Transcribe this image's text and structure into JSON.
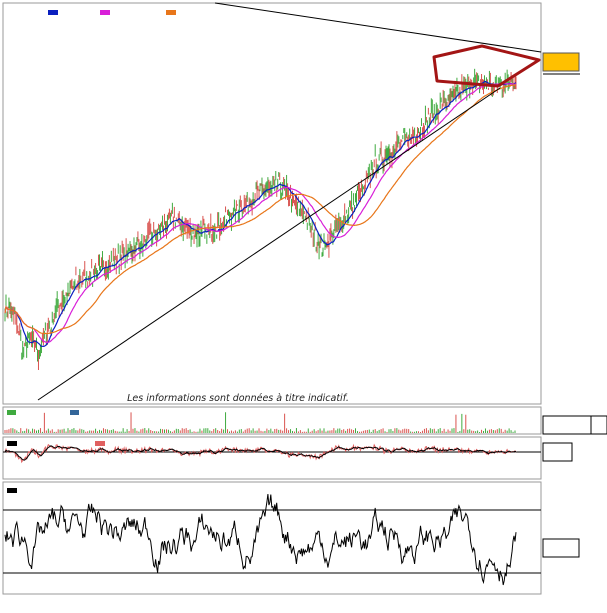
{
  "disclaimer": "Les informations sont données à titre indicatif.",
  "colors": {
    "price_up": "#3faa3f",
    "price_down": "#d9534f",
    "ma_short": "#0a1fbf",
    "ma_medium": "#d81fd8",
    "ma_long": "#e8761a",
    "trendline": "#000000",
    "pattern": "#a31515",
    "price_marker": "#ffc000",
    "volume_mark": "#3faa3f",
    "volume_mark_alt": "#336699",
    "osc_signal": "#e06060"
  },
  "chart_data": [
    {
      "type": "line",
      "panel": "price",
      "legend": [
        {
          "color": "#0a1fbf"
        },
        {
          "color": "#d81fd8"
        },
        {
          "color": "#e8761a"
        }
      ],
      "x_count": 520,
      "price_anchors": [
        [
          0,
          60
        ],
        [
          10,
          52
        ],
        [
          18,
          30
        ],
        [
          26,
          38
        ],
        [
          34,
          28
        ],
        [
          42,
          42
        ],
        [
          55,
          60
        ],
        [
          70,
          75
        ],
        [
          90,
          82
        ],
        [
          105,
          88
        ],
        [
          120,
          95
        ],
        [
          140,
          102
        ],
        [
          155,
          110
        ],
        [
          170,
          118
        ],
        [
          185,
          112
        ],
        [
          200,
          108
        ],
        [
          215,
          113
        ],
        [
          235,
          125
        ],
        [
          250,
          132
        ],
        [
          265,
          138
        ],
        [
          280,
          140
        ],
        [
          295,
          128
        ],
        [
          305,
          120
        ],
        [
          315,
          105
        ],
        [
          325,
          100
        ],
        [
          335,
          110
        ],
        [
          345,
          120
        ],
        [
          355,
          130
        ],
        [
          365,
          140
        ],
        [
          375,
          155
        ],
        [
          390,
          163
        ],
        [
          405,
          170
        ],
        [
          420,
          178
        ],
        [
          435,
          190
        ],
        [
          450,
          197
        ],
        [
          465,
          205
        ],
        [
          480,
          210
        ],
        [
          495,
          208
        ],
        [
          510,
          210
        ],
        [
          520,
          212
        ]
      ],
      "trendlines": [
        {
          "from": [
            8,
            0
          ],
          "to": [
            520,
            260
          ]
        },
        {
          "from": [
            180,
            330
          ],
          "to": [
            520,
            215
          ]
        }
      ],
      "pattern_points": [
        [
          432,
          200
        ],
        [
          482,
          213
        ],
        [
          521,
          205
        ],
        [
          498,
          180
        ],
        [
          435,
          188
        ]
      ]
    },
    {
      "type": "bar",
      "panel": "volume",
      "x_count": 520
    },
    {
      "type": "line",
      "panel": "momentum",
      "x_count": 520,
      "zero_line": 0
    },
    {
      "type": "line",
      "panel": "oscillator",
      "x_count": 520,
      "ylim": [
        0,
        100
      ],
      "levels": [
        80,
        20
      ]
    }
  ]
}
